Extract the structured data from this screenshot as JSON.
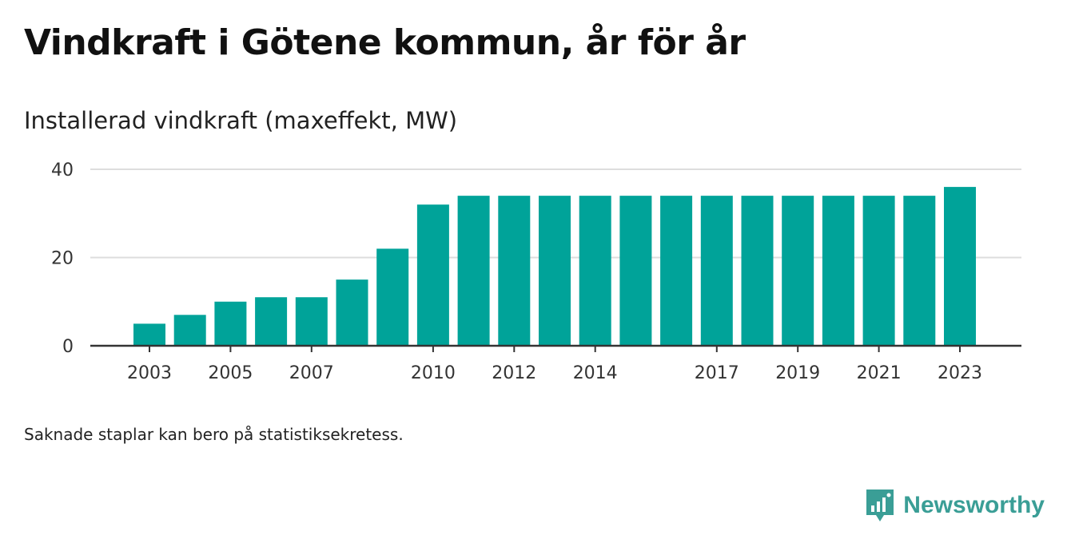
{
  "title": "Vindkraft i Götene kommun, år för år",
  "subtitle": "Installerad vindkraft (maxeffekt, MW)",
  "footnote": "Saknade staplar kan bero på statistiksekretess.",
  "brand": {
    "name": "Newsworthy",
    "icon": "newsworthy-logo-icon",
    "color": "#3a9e96"
  },
  "chart_data": {
    "type": "bar",
    "categories": [
      "2003",
      "2004",
      "2005",
      "2006",
      "2007",
      "2008",
      "2009",
      "2010",
      "2011",
      "2012",
      "2013",
      "2014",
      "2015",
      "2016",
      "2017",
      "2018",
      "2019",
      "2020",
      "2021",
      "2022",
      "2023"
    ],
    "values": [
      5,
      7,
      10,
      11,
      11,
      15,
      22,
      32,
      34,
      34,
      34,
      34,
      34,
      34,
      34,
      34,
      34,
      34,
      34,
      34,
      36
    ],
    "xtick_labels": [
      "2003",
      "2005",
      "2007",
      "2010",
      "2012",
      "2014",
      "2017",
      "2019",
      "2021",
      "2023"
    ],
    "yticks": [
      0,
      20,
      40
    ],
    "ylim": [
      0,
      40
    ],
    "xlabel": "",
    "ylabel": "",
    "grid": true,
    "bar_color": "#00a399",
    "grid_color": "#dddddd",
    "axis_color": "#333333"
  }
}
